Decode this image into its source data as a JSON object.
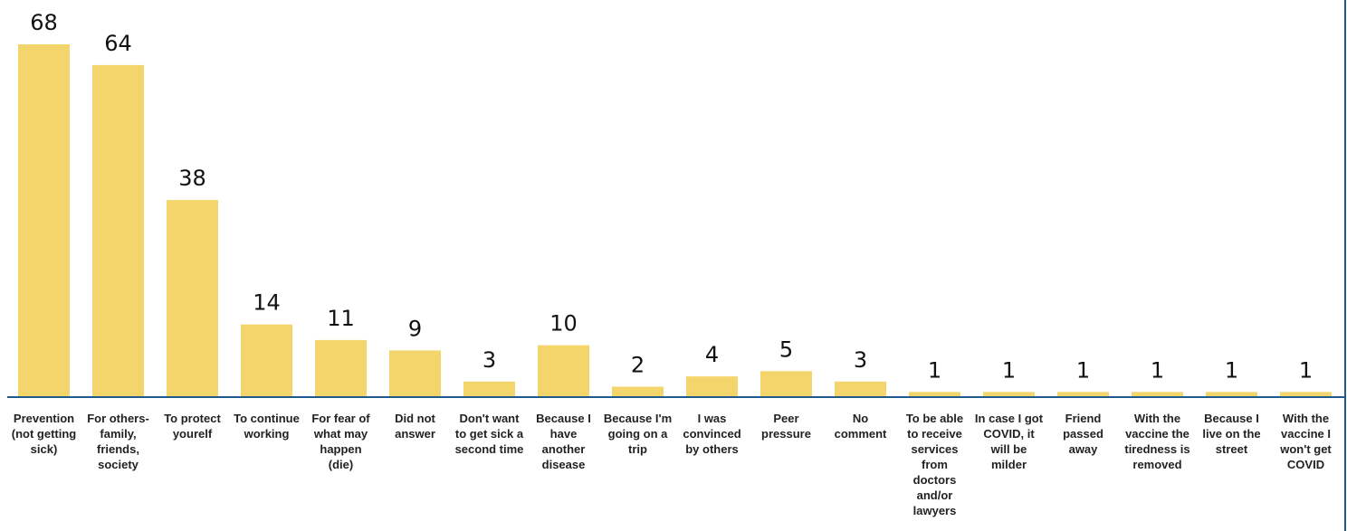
{
  "chart_data": {
    "type": "bar",
    "categories": [
      "Prevention (not getting sick)",
      "For others- family, friends, society",
      "To protect yourelf",
      "To continue working",
      "For fear of what may happen (die)",
      "Did not answer",
      "Don't want to get sick a second time",
      "Because I have another disease",
      "Because I'm going on a trip",
      "I was convinced by others",
      "Peer pressure",
      "No comment",
      "To be able to receive services from doctors and/or lawyers",
      "In case I got COVID, it will be milder",
      "Friend passed away",
      "With the vaccine the tiredness is removed",
      "Because I live on the street",
      "With the vaccine I won't get COVID"
    ],
    "category_lines": [
      [
        "Prevention",
        "(not getting",
        "sick)"
      ],
      [
        "For others-",
        "family,",
        "friends,",
        "society"
      ],
      [
        "To protect",
        "yourelf"
      ],
      [
        "To continue",
        "working"
      ],
      [
        "For fear of",
        "what may",
        "happen",
        "(die)"
      ],
      [
        "Did not",
        "answer"
      ],
      [
        "Don't want",
        "to get sick a",
        "second time"
      ],
      [
        "Because I",
        "have",
        "another",
        "disease"
      ],
      [
        "Because I'm",
        "going on a",
        "trip"
      ],
      [
        "I was",
        "convinced",
        "by others"
      ],
      [
        "Peer",
        "pressure"
      ],
      [
        "No",
        "comment"
      ],
      [
        "To be able",
        "to receive",
        "services",
        "from",
        "doctors",
        "and/or",
        "lawyers"
      ],
      [
        "In case I got",
        "COVID, it",
        "will be",
        "milder"
      ],
      [
        "Friend",
        "passed",
        "away"
      ],
      [
        "With the",
        "vaccine the",
        "tiredness is",
        "removed"
      ],
      [
        "Because I",
        "live on the",
        "street"
      ],
      [
        "With the",
        "vaccine I",
        "won't get",
        "COVID"
      ]
    ],
    "values": [
      68,
      64,
      38,
      14,
      11,
      9,
      3,
      10,
      2,
      4,
      5,
      3,
      1,
      1,
      1,
      1,
      1,
      1
    ],
    "ylim": [
      0,
      68
    ],
    "grid": false,
    "legend": "none",
    "colors": {
      "bar": "#f3d56b",
      "axis": "#1f5a8c"
    }
  }
}
